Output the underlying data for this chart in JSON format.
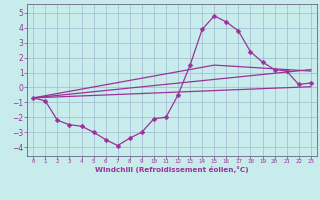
{
  "xlabel": "Windchill (Refroidissement éolien,°C)",
  "background_color": "#c8ecec",
  "grid_color": "#a0b8cc",
  "line_color": "#993399",
  "spine_color": "#666688",
  "xlim": [
    -0.5,
    23.5
  ],
  "ylim": [
    -4.6,
    5.6
  ],
  "xticks": [
    0,
    1,
    2,
    3,
    4,
    5,
    6,
    7,
    8,
    9,
    10,
    11,
    12,
    13,
    14,
    15,
    16,
    17,
    18,
    19,
    20,
    21,
    22,
    23
  ],
  "yticks": [
    -4,
    -3,
    -2,
    -1,
    0,
    1,
    2,
    3,
    4,
    5
  ],
  "line1_x": [
    0,
    1,
    2,
    3,
    4,
    5,
    6,
    7,
    8,
    9,
    10,
    11,
    12,
    13,
    14,
    15,
    16,
    17,
    18,
    19,
    20,
    21,
    22,
    23
  ],
  "line1_y": [
    -0.7,
    -0.9,
    -2.2,
    -2.5,
    -2.6,
    -3.0,
    -3.5,
    -3.9,
    -3.4,
    -3.0,
    -2.1,
    -2.0,
    -0.5,
    1.5,
    3.9,
    4.8,
    4.4,
    3.8,
    2.4,
    1.7,
    1.2,
    1.1,
    0.2,
    0.3
  ],
  "line2_x": [
    0,
    23
  ],
  "line2_y": [
    -0.7,
    0.05
  ],
  "line3_x": [
    0,
    23
  ],
  "line3_y": [
    -0.7,
    1.2
  ],
  "line4_x": [
    0,
    15,
    23
  ],
  "line4_y": [
    -0.7,
    1.5,
    1.1
  ]
}
